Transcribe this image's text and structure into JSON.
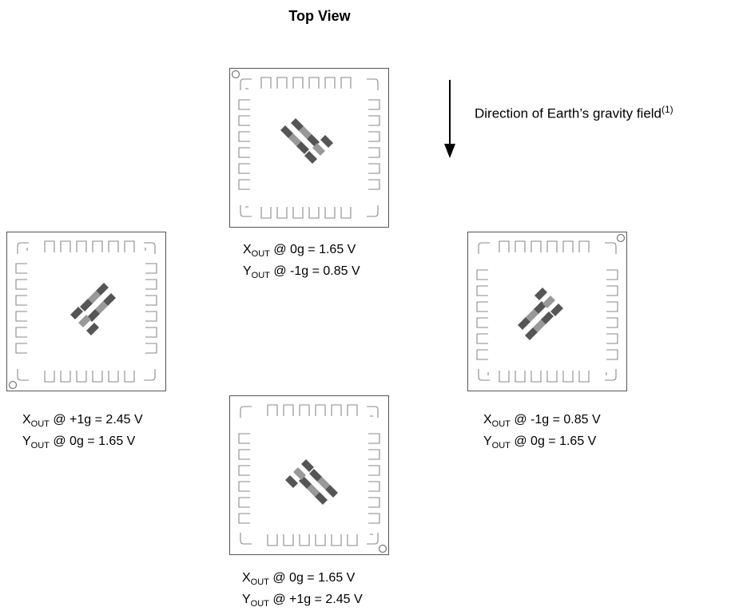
{
  "title": "Top View",
  "gravity_label": "Direction of Earth’s gravity field",
  "gravity_footnote": "(1)",
  "orientations": [
    {
      "id": "top",
      "x_axis": "X",
      "x_sub": "OUT",
      "x_rest": " @ 0g = 1.65 V",
      "y_axis": "Y",
      "y_sub": "OUT",
      "y_rest": " @ -1g = 0.85 V"
    },
    {
      "id": "left",
      "x_axis": "X",
      "x_sub": "OUT",
      "x_rest": " @ +1g = 2.45 V",
      "y_axis": "Y",
      "y_sub": "OUT",
      "y_rest": " @ 0g = 1.65 V"
    },
    {
      "id": "right",
      "x_axis": "X",
      "x_sub": "OUT",
      "x_rest": " @ -1g = 0.85 V",
      "y_axis": "Y",
      "y_sub": "OUT",
      "y_rest": " @ 0g = 1.65 V"
    },
    {
      "id": "bottom",
      "x_axis": "X",
      "x_sub": "OUT",
      "x_rest": " @ 0g = 1.65 V",
      "y_axis": "Y",
      "y_sub": "OUT",
      "y_rest": " @ +1g = 2.45 V"
    }
  ]
}
